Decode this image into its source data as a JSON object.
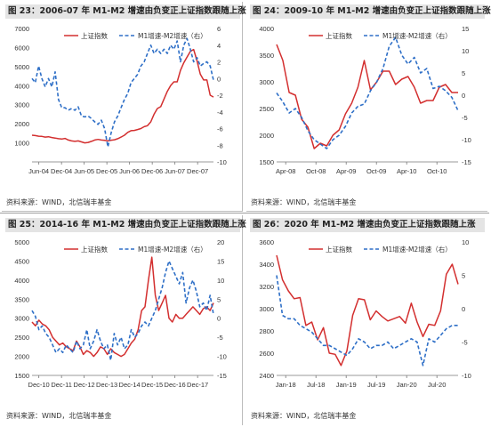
{
  "colors": {
    "primary": "#d32f2f",
    "secondary": "#2e6fc7",
    "axis": "#777777",
    "text": "#333333"
  },
  "panels": [
    {
      "title": "图 23：2006-07 年 M1-M2 增速由负变正上证指数跟随上涨",
      "source": "资料来源：WIND，北信瑞丰基金"
    },
    {
      "title": "图 24：2009-10 年 M1-M2 增速由负变正上证指数跟随上涨",
      "source": "资料来源：WIND，北信瑞丰基金"
    },
    {
      "title": "图 25：2014-16 年 M1-M2 增速由负变正上证指数跟随上涨",
      "source": "资料来源：WIND，北信瑞丰基金"
    },
    {
      "title": "图 26：2020 年 M1-M2 增速由负变正上证指数跟随上涨",
      "source": "资料来源：WIND，北信瑞丰基金"
    }
  ],
  "chart_data": [
    {
      "type": "line",
      "x_ticks": [
        "Jun-04",
        "Dec-04",
        "Jun-05",
        "Dec-05",
        "Jun-06",
        "Dec-06",
        "Jun-07",
        "Dec-07"
      ],
      "ylim": [
        0,
        7000
      ],
      "yticks": [
        1000,
        2000,
        3000,
        4000,
        5000,
        6000,
        7000
      ],
      "y2lim": [
        -10,
        6
      ],
      "y2ticks": [
        -10,
        -8,
        -6,
        -4,
        -2,
        0,
        2,
        4,
        6
      ],
      "legend": [
        "上证指数",
        "M1增速-M2增速（右）"
      ],
      "series": [
        {
          "name": "上证指数",
          "axis": "left",
          "style": "solid",
          "values": [
            1400,
            1380,
            1350,
            1340,
            1300,
            1320,
            1280,
            1250,
            1220,
            1200,
            1230,
            1150,
            1100,
            1080,
            1100,
            1050,
            1000,
            1020,
            1080,
            1150,
            1180,
            1150,
            1130,
            1100,
            1140,
            1160,
            1220,
            1300,
            1400,
            1550,
            1640,
            1650,
            1700,
            1750,
            1850,
            1900,
            2100,
            2500,
            2800,
            2900,
            3300,
            3700,
            4000,
            4200,
            4200,
            4800,
            5200,
            5500,
            5800,
            5900,
            5300,
            4600,
            4300,
            4300,
            3500,
            3400
          ]
        },
        {
          "name": "M1增速-M2增速（右）",
          "axis": "right",
          "style": "dashed",
          "values": [
            0.0,
            -0.5,
            1.5,
            0.0,
            -1.0,
            0.0,
            -1.0,
            0.8,
            -2.5,
            -3.5,
            -3.5,
            -3.8,
            -3.6,
            -3.8,
            -3.4,
            -4.5,
            -4.6,
            -4.5,
            -4.8,
            -5.2,
            -5.5,
            -5.0,
            -6.0,
            -8.2,
            -6.5,
            -5.2,
            -4.5,
            -3.5,
            -2.5,
            -1.8,
            -0.5,
            0.0,
            0.5,
            1.5,
            2.0,
            3.0,
            4.0,
            3.0,
            3.5,
            3.0,
            3.5,
            3.0,
            4.0,
            3.5,
            4.5,
            2.0,
            4.0,
            4.8,
            3.5,
            2.0,
            2.5,
            1.5,
            1.8,
            2.0,
            1.5,
            -0.2
          ]
        }
      ]
    },
    {
      "type": "line",
      "x_ticks": [
        "Apr-08",
        "Oct-08",
        "Apr-09",
        "Oct-09",
        "Apr-10",
        "Oct-10"
      ],
      "ylim": [
        1500,
        4000
      ],
      "yticks": [
        1500,
        2000,
        2500,
        3000,
        3500,
        4000
      ],
      "y2lim": [
        -15,
        15
      ],
      "y2ticks": [
        -15,
        -10,
        -5,
        0,
        5,
        10,
        15
      ],
      "legend": [
        "上证指数",
        "M1增速-M2增速（右）"
      ],
      "series": [
        {
          "name": "上证指数",
          "axis": "left",
          "style": "solid",
          "values": [
            3700,
            3400,
            2800,
            2750,
            2300,
            2150,
            1750,
            1850,
            1800,
            2000,
            2100,
            2400,
            2600,
            2900,
            3400,
            2850,
            3000,
            3200,
            3200,
            2950,
            3050,
            3100,
            2900,
            2600,
            2650,
            2650,
            2900,
            2950,
            2800,
            2800
          ]
        },
        {
          "name": "M1增速-M2增速（右）",
          "axis": "right",
          "style": "dashed",
          "values": [
            0.5,
            -1.5,
            -4.0,
            -3.0,
            -5.0,
            -8.0,
            -10.0,
            -11.0,
            -12.0,
            -10.0,
            -9.0,
            -7.0,
            -4.0,
            -2.5,
            -2.0,
            1.0,
            3.0,
            6.0,
            11.0,
            13.0,
            9.0,
            7.0,
            8.5,
            5.0,
            6.0,
            1.5,
            2.0,
            1.0,
            -0.5,
            -3.5
          ]
        }
      ]
    },
    {
      "type": "line",
      "x_ticks": [
        "Dec-10",
        "Dec-11",
        "Dec-12",
        "Dec-13",
        "Dec-14",
        "Dec-15",
        "Dec-16",
        "Dec-17"
      ],
      "ylim": [
        1500,
        5000
      ],
      "yticks": [
        1500,
        2000,
        2500,
        3000,
        3500,
        4000,
        4500,
        5000
      ],
      "y2lim": [
        -15,
        20
      ],
      "y2ticks": [
        -15,
        -10,
        -5,
        0,
        5,
        10,
        15,
        20
      ],
      "legend": [
        "上证指数",
        "M1增速-M2增速（右）"
      ],
      "series": [
        {
          "name": "上证指数",
          "axis": "left",
          "style": "solid",
          "values": [
            2900,
            2800,
            2950,
            2850,
            2800,
            2700,
            2500,
            2400,
            2300,
            2350,
            2250,
            2200,
            2150,
            2400,
            2250,
            2050,
            2150,
            2100,
            2000,
            2100,
            2250,
            2200,
            2050,
            2200,
            2100,
            2050,
            2000,
            2050,
            2200,
            2350,
            2450,
            2700,
            3200,
            3300,
            4000,
            4600,
            3600,
            3200,
            3400,
            3600,
            3000,
            2900,
            3100,
            3000,
            3000,
            3100,
            3200,
            3300,
            3200,
            3100,
            3250,
            3300,
            3200,
            3400
          ]
        },
        {
          "name": "M1增速-M2增速（右）",
          "axis": "right",
          "style": "dashed",
          "values": [
            2.0,
            0.5,
            -3.0,
            -2.0,
            -4.0,
            -5.0,
            -7.0,
            -9.0,
            -8.0,
            -9.0,
            -7.0,
            -8.0,
            -9.0,
            -6.0,
            -8.0,
            -7.0,
            -3.0,
            -8.0,
            -6.0,
            -3.0,
            -6.0,
            -8.0,
            -7.0,
            -11.0,
            -4.0,
            -7.0,
            -5.0,
            -8.0,
            -7.0,
            -3.0,
            -5.0,
            -4.0,
            -2.0,
            -1.0,
            -2.0,
            0.0,
            2.0,
            5.0,
            8.0,
            12.0,
            15.0,
            13.0,
            11.0,
            9.0,
            12.0,
            4.0,
            8.0,
            10.0,
            7.0,
            3.0,
            4.0,
            2.0,
            6.0,
            1.0
          ]
        }
      ]
    },
    {
      "type": "line",
      "x_ticks": [
        "Jan-18",
        "Jul-18",
        "Jan-19",
        "Jul-19",
        "Jan-20",
        "Jul-20"
      ],
      "ylim": [
        2400,
        3600
      ],
      "yticks": [
        2400,
        2600,
        2800,
        3000,
        3200,
        3400,
        3600
      ],
      "y2lim": [
        -10,
        10
      ],
      "y2ticks": [
        -10,
        -5,
        0,
        5,
        10
      ],
      "legend": [
        "上证指数",
        "M1增速-M2增速（右）"
      ],
      "series": [
        {
          "name": "上证指数",
          "axis": "left",
          "style": "solid",
          "values": [
            3480,
            3260,
            3160,
            3090,
            3100,
            2850,
            2880,
            2720,
            2830,
            2600,
            2590,
            2490,
            2620,
            2940,
            3090,
            3080,
            2900,
            2980,
            2930,
            2890,
            2910,
            2930,
            2870,
            3050,
            2880,
            2750,
            2860,
            2850,
            2980,
            3310,
            3400,
            3220
          ]
        },
        {
          "name": "M1增速-M2增速（右）",
          "axis": "right",
          "style": "dashed",
          "values": [
            5.0,
            -1.0,
            -1.5,
            -1.5,
            -2.5,
            -3.0,
            -3.5,
            -4.5,
            -5.5,
            -5.5,
            -6.0,
            -6.5,
            -7.0,
            -6.0,
            -4.5,
            -5.0,
            -6.0,
            -5.5,
            -5.5,
            -5.0,
            -6.0,
            -5.5,
            -5.0,
            -4.5,
            -5.0,
            -8.5,
            -4.5,
            -5.0,
            -4.0,
            -3.0,
            -2.5,
            -2.5
          ]
        }
      ]
    }
  ]
}
